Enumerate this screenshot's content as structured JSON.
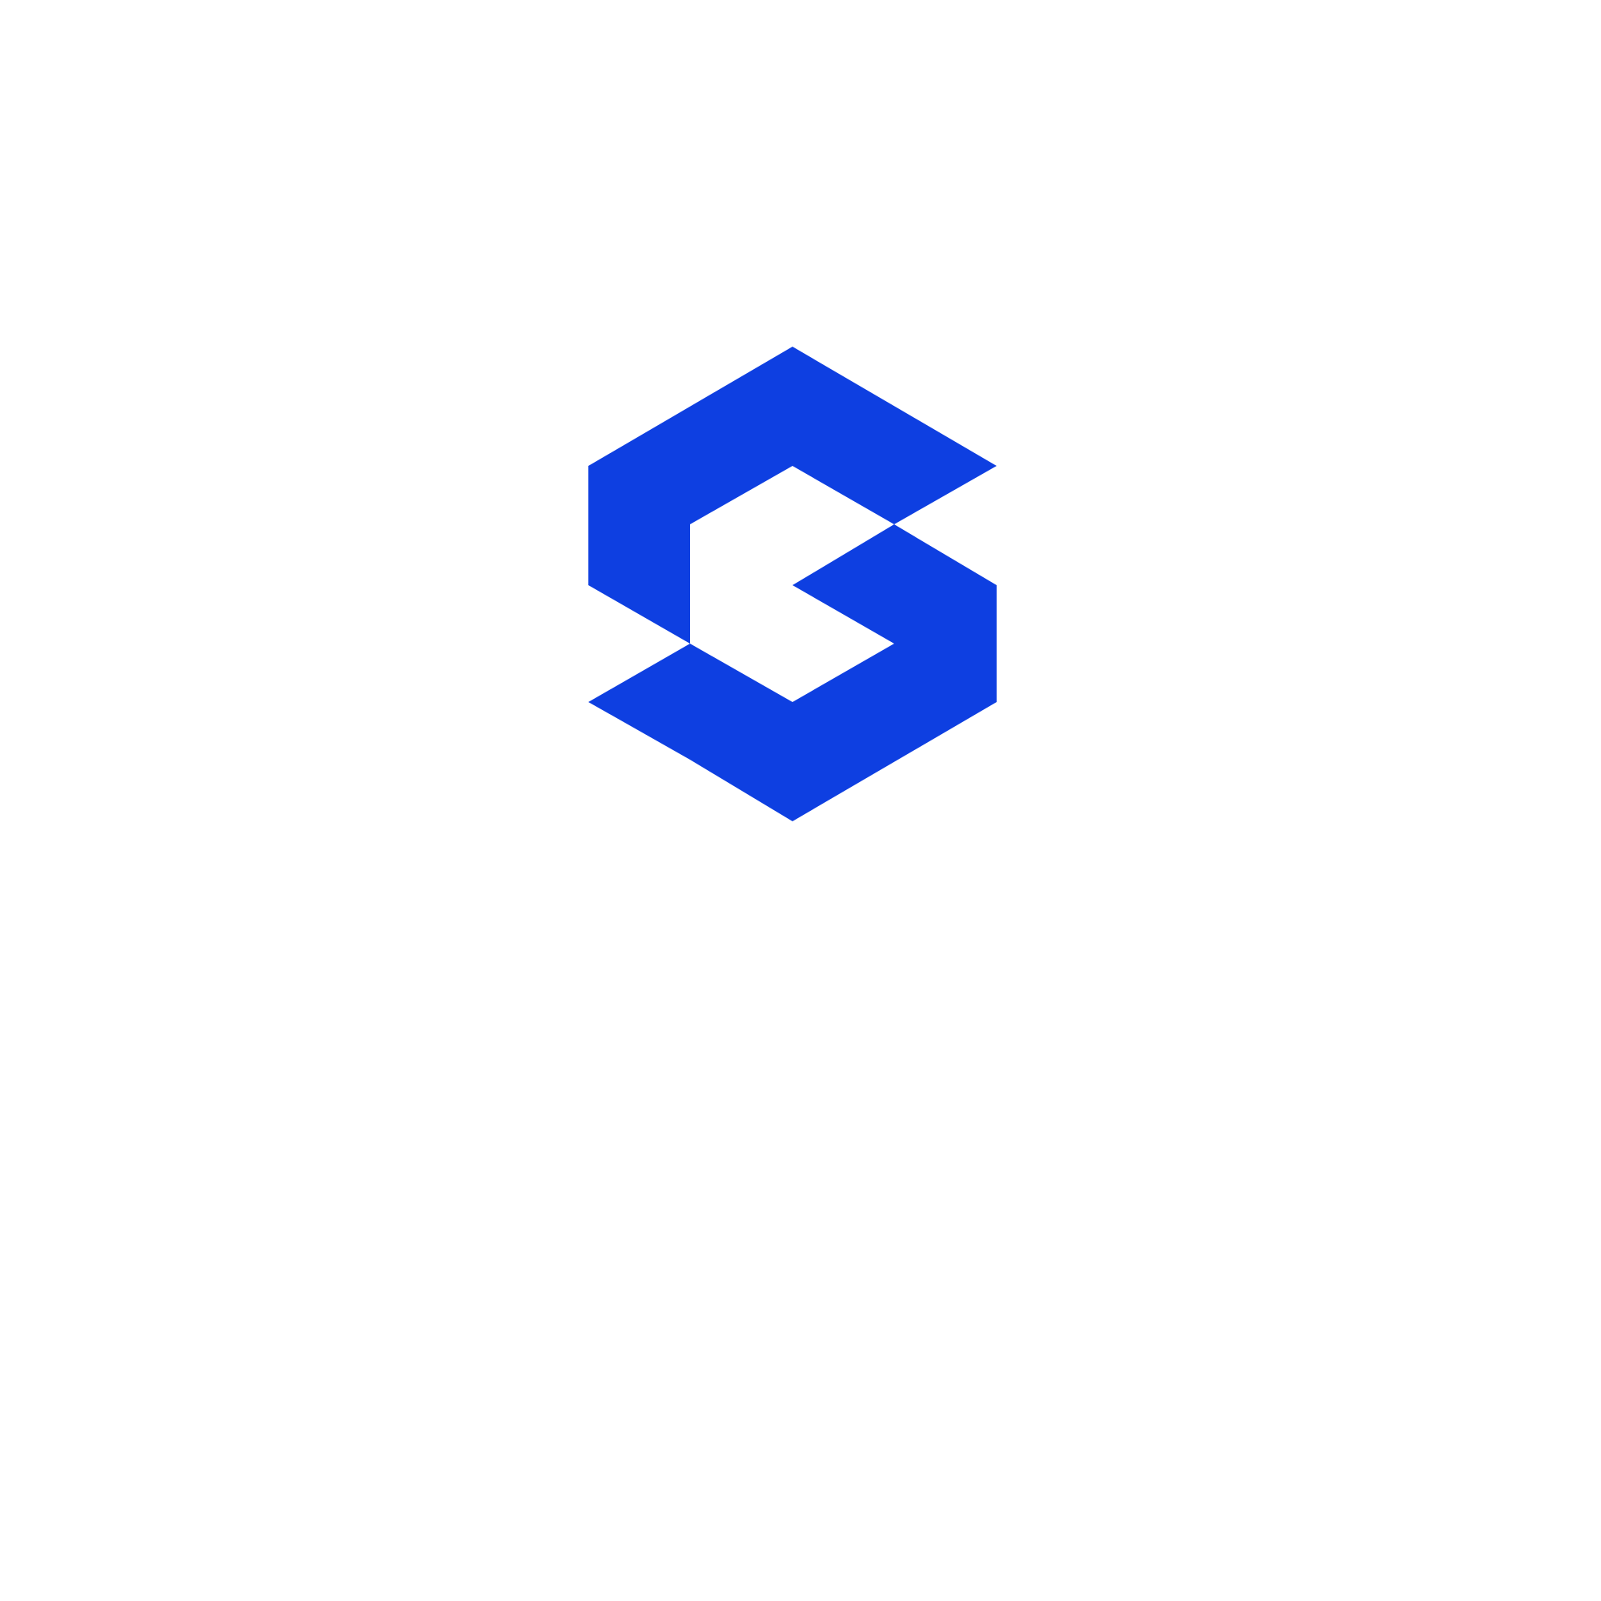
{
  "page": {
    "background_color": "#ffffff"
  },
  "logo": {
    "icon": "hexagonal-g-logo-icon",
    "color": "#0e3fe1"
  }
}
